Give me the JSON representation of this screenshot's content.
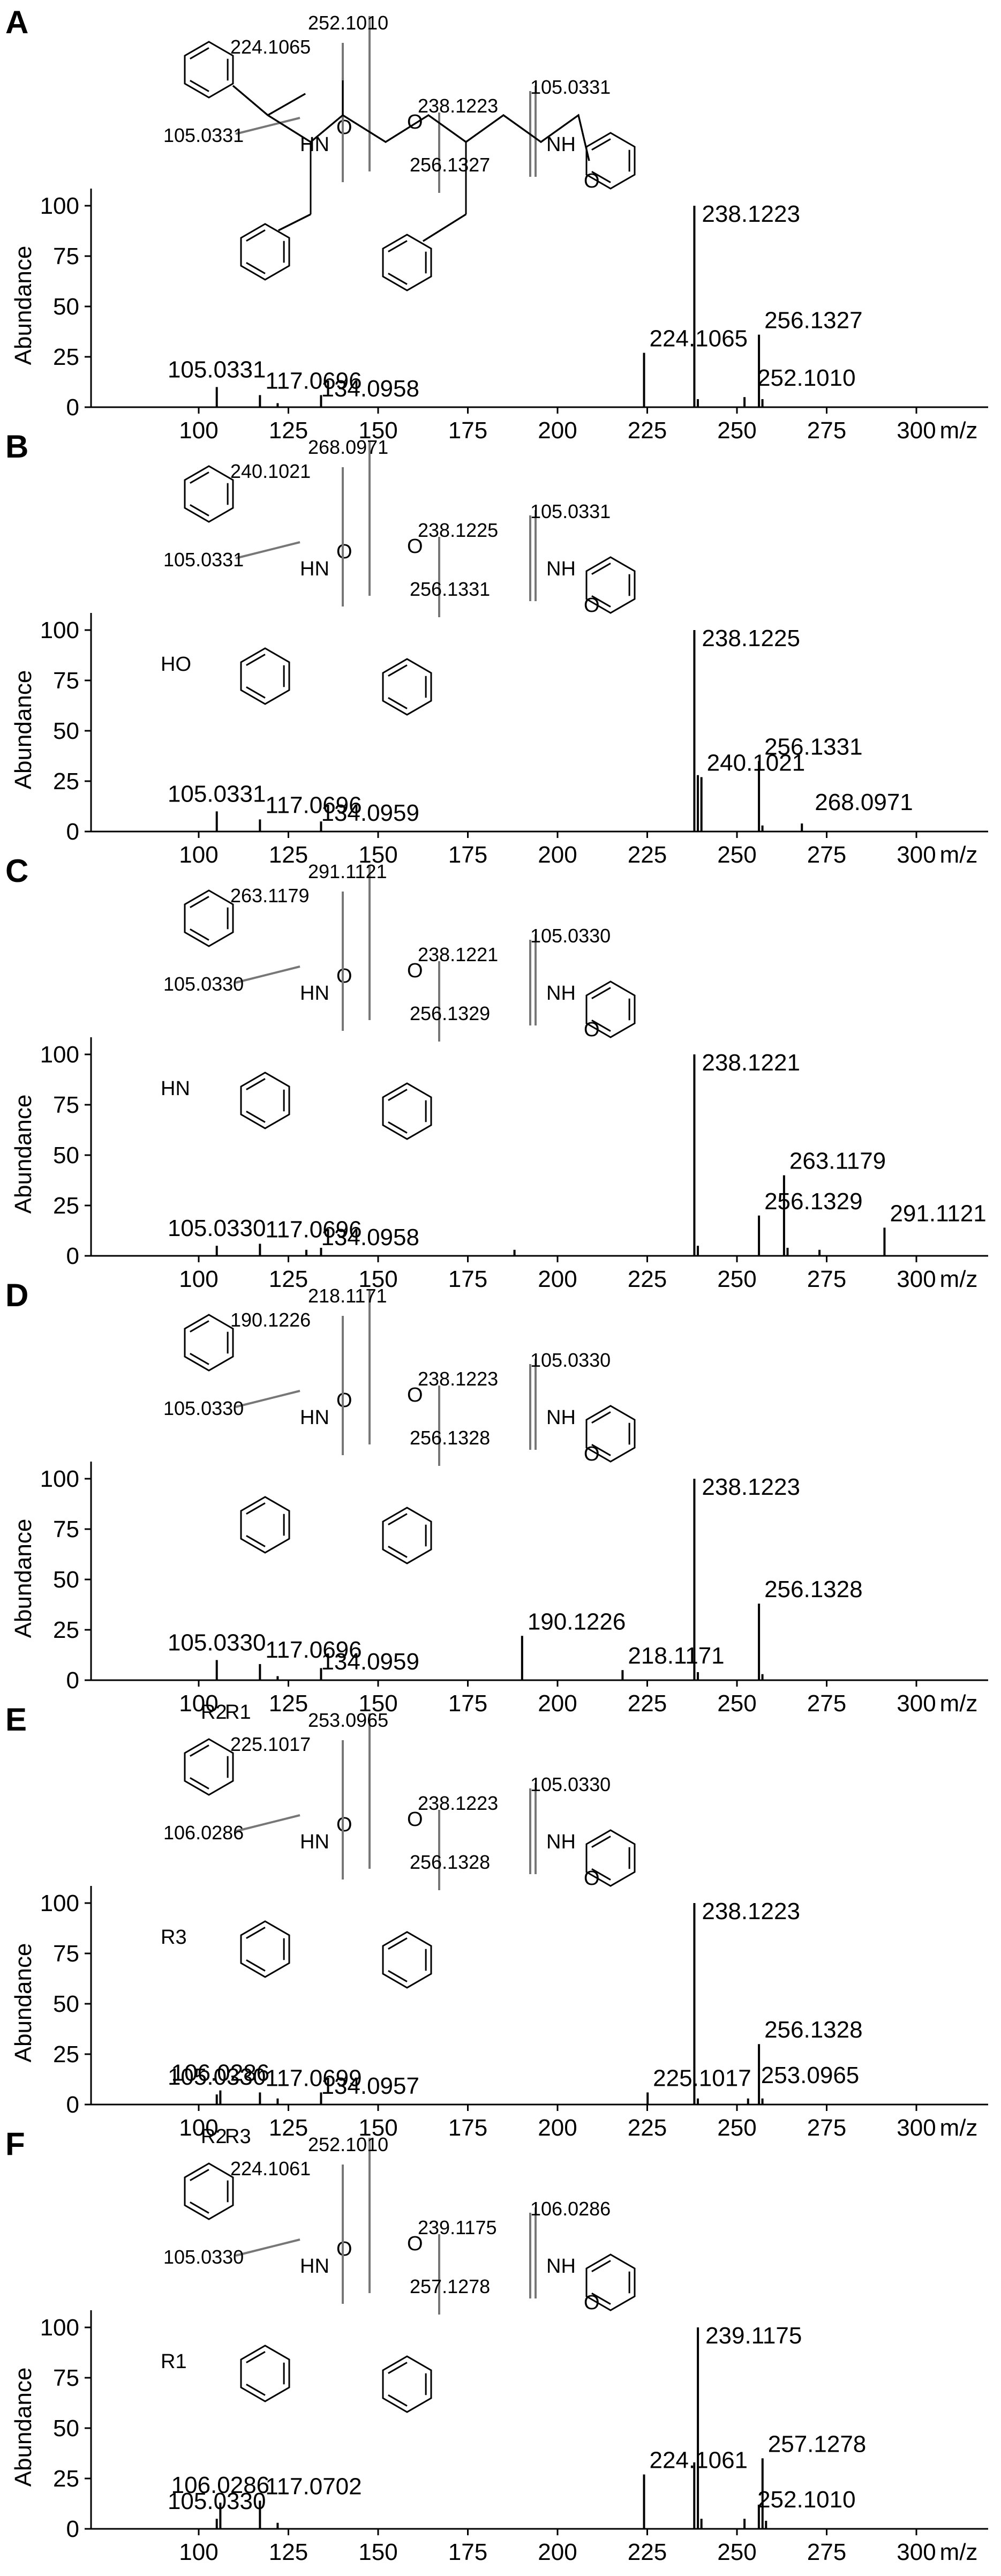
{
  "chart_data": [
    {
      "panel_label": "A",
      "type": "bar",
      "ylabel": "Abundance",
      "xunit": "m/z",
      "xlim": [
        70,
        320
      ],
      "ylim": [
        0,
        110
      ],
      "xticks": [
        100,
        125,
        150,
        175,
        200,
        225,
        250,
        275,
        300
      ],
      "yticks": [
        0,
        25,
        50,
        75,
        100
      ],
      "peaks": [
        {
          "x": 105.0331,
          "y": 10,
          "label": "105.0331"
        },
        {
          "x": 117.0696,
          "y": 6,
          "label": "117.0696"
        },
        {
          "x": 122.0,
          "y": 2,
          "label": ""
        },
        {
          "x": 134.0958,
          "y": 6,
          "label": "134.0958"
        },
        {
          "x": 224.1065,
          "y": 27,
          "label": "224.1065"
        },
        {
          "x": 238.1223,
          "y": 100,
          "label": "238.1223"
        },
        {
          "x": 239.1,
          "y": 4,
          "label": ""
        },
        {
          "x": 252.101,
          "y": 5,
          "label": "252.1010"
        },
        {
          "x": 256.1327,
          "y": 36,
          "label": "256.1327"
        },
        {
          "x": 257.1,
          "y": 4,
          "label": ""
        }
      ],
      "fragments": [
        "252.1010",
        "224.1065",
        "105.0331",
        "238.1223",
        "105.0331",
        "256.1327"
      ]
    },
    {
      "panel_label": "B",
      "type": "bar",
      "ylabel": "Abundance",
      "xunit": "m/z",
      "xlim": [
        70,
        320
      ],
      "ylim": [
        0,
        110
      ],
      "xticks": [
        100,
        125,
        150,
        175,
        200,
        225,
        250,
        275,
        300
      ],
      "yticks": [
        0,
        25,
        50,
        75,
        100
      ],
      "peaks": [
        {
          "x": 105.0331,
          "y": 10,
          "label": "105.0331"
        },
        {
          "x": 117.0696,
          "y": 6,
          "label": "117.0696"
        },
        {
          "x": 134.0959,
          "y": 5,
          "label": "134.0959"
        },
        {
          "x": 238.1225,
          "y": 100,
          "label": "238.1225"
        },
        {
          "x": 239.1,
          "y": 28,
          "label": ""
        },
        {
          "x": 240.1021,
          "y": 27,
          "label": "240.1021"
        },
        {
          "x": 256.1331,
          "y": 35,
          "label": "256.1331"
        },
        {
          "x": 257.1,
          "y": 3,
          "label": ""
        },
        {
          "x": 268.0971,
          "y": 4,
          "label": "268.0971"
        }
      ],
      "fragments": [
        "268.0971",
        "240.1021",
        "105.0331",
        "238.1225",
        "105.0331",
        "256.1331"
      ],
      "atoms": [
        "HO"
      ]
    },
    {
      "panel_label": "C",
      "type": "bar",
      "ylabel": "Abundance",
      "xunit": "m/z",
      "xlim": [
        70,
        320
      ],
      "ylim": [
        0,
        110
      ],
      "xticks": [
        100,
        125,
        150,
        175,
        200,
        225,
        250,
        275,
        300
      ],
      "yticks": [
        0,
        25,
        50,
        75,
        100
      ],
      "peaks": [
        {
          "x": 105.033,
          "y": 5,
          "label": "105.0330"
        },
        {
          "x": 117.0696,
          "y": 6,
          "label": "117.0696"
        },
        {
          "x": 130.0,
          "y": 3,
          "label": ""
        },
        {
          "x": 134.0958,
          "y": 4,
          "label": "134.0958"
        },
        {
          "x": 188.0,
          "y": 3,
          "label": ""
        },
        {
          "x": 238.1221,
          "y": 100,
          "label": "238.1221"
        },
        {
          "x": 239.1,
          "y": 5,
          "label": ""
        },
        {
          "x": 256.1329,
          "y": 20,
          "label": "256.1329"
        },
        {
          "x": 263.1179,
          "y": 40,
          "label": "263.1179"
        },
        {
          "x": 264.1,
          "y": 4,
          "label": ""
        },
        {
          "x": 273.0,
          "y": 3,
          "label": ""
        },
        {
          "x": 291.1121,
          "y": 14,
          "label": "291.1121"
        }
      ],
      "fragments": [
        "291.1121",
        "263.1179",
        "105.0330",
        "238.1221",
        "105.0330",
        "256.1329"
      ],
      "atoms": [
        "HN"
      ]
    },
    {
      "panel_label": "D",
      "type": "bar",
      "ylabel": "Abundance",
      "xunit": "m/z",
      "xlim": [
        70,
        320
      ],
      "ylim": [
        0,
        110
      ],
      "xticks": [
        100,
        125,
        150,
        175,
        200,
        225,
        250,
        275,
        300
      ],
      "yticks": [
        0,
        25,
        50,
        75,
        100
      ],
      "peaks": [
        {
          "x": 105.033,
          "y": 10,
          "label": "105.0330"
        },
        {
          "x": 117.0696,
          "y": 8,
          "label": "117.0696"
        },
        {
          "x": 122.0,
          "y": 2,
          "label": ""
        },
        {
          "x": 134.0959,
          "y": 6,
          "label": "134.0959"
        },
        {
          "x": 190.1226,
          "y": 22,
          "label": "190.1226"
        },
        {
          "x": 218.1171,
          "y": 5,
          "label": "218.1171"
        },
        {
          "x": 238.1223,
          "y": 100,
          "label": "238.1223"
        },
        {
          "x": 239.1,
          "y": 4,
          "label": ""
        },
        {
          "x": 256.1328,
          "y": 38,
          "label": "256.1328"
        },
        {
          "x": 257.1,
          "y": 3,
          "label": ""
        }
      ],
      "fragments": [
        "218.1171",
        "190.1226",
        "105.0330",
        "238.1223",
        "105.0330",
        "256.1328"
      ]
    },
    {
      "panel_label": "E",
      "type": "bar",
      "ylabel": "Abundance",
      "xunit": "m/z",
      "xlim": [
        70,
        320
      ],
      "ylim": [
        0,
        110
      ],
      "xticks": [
        100,
        125,
        150,
        175,
        200,
        225,
        250,
        275,
        300
      ],
      "yticks": [
        0,
        25,
        50,
        75,
        100
      ],
      "peaks": [
        {
          "x": 105.033,
          "y": 5,
          "label": "105.0330"
        },
        {
          "x": 106.0286,
          "y": 7,
          "label": "106.0286"
        },
        {
          "x": 117.0699,
          "y": 6,
          "label": "117.0699"
        },
        {
          "x": 122.0,
          "y": 3,
          "label": ""
        },
        {
          "x": 134.0957,
          "y": 6,
          "label": "134.0957"
        },
        {
          "x": 225.1017,
          "y": 6,
          "label": "225.1017"
        },
        {
          "x": 238.1223,
          "y": 100,
          "label": "238.1223"
        },
        {
          "x": 239.1,
          "y": 3,
          "label": ""
        },
        {
          "x": 253.0965,
          "y": 3,
          "label": "253.0965"
        },
        {
          "x": 256.1328,
          "y": 30,
          "label": "256.1328"
        },
        {
          "x": 257.1,
          "y": 3,
          "label": ""
        }
      ],
      "fragments": [
        "253.0965",
        "225.1017",
        "106.0286",
        "238.1223",
        "105.0330",
        "256.1328"
      ],
      "atoms": [
        "R3",
        "R2",
        "R1"
      ]
    },
    {
      "panel_label": "F",
      "type": "bar",
      "ylabel": "Abundance",
      "xunit": "m/z",
      "xlim": [
        70,
        320
      ],
      "ylim": [
        0,
        110
      ],
      "xticks": [
        100,
        125,
        150,
        175,
        200,
        225,
        250,
        275,
        300
      ],
      "yticks": [
        0,
        25,
        50,
        75,
        100
      ],
      "peaks": [
        {
          "x": 105.033,
          "y": 5,
          "label": "105.0330"
        },
        {
          "x": 106.0286,
          "y": 13,
          "label": "106.0286"
        },
        {
          "x": 117.0702,
          "y": 14,
          "label": "117.0702"
        },
        {
          "x": 122.0,
          "y": 3,
          "label": ""
        },
        {
          "x": 224.1061,
          "y": 27,
          "label": "224.1061"
        },
        {
          "x": 238.1,
          "y": 33,
          "label": ""
        },
        {
          "x": 239.1175,
          "y": 100,
          "label": "239.1175"
        },
        {
          "x": 240.1,
          "y": 5,
          "label": ""
        },
        {
          "x": 252.101,
          "y": 5,
          "label": "252.1010"
        },
        {
          "x": 256.1,
          "y": 12,
          "label": ""
        },
        {
          "x": 257.1278,
          "y": 35,
          "label": "257.1278"
        },
        {
          "x": 258.1,
          "y": 4,
          "label": ""
        }
      ],
      "fragments": [
        "252.1010",
        "224.1061",
        "105.0330",
        "239.1175",
        "106.0286",
        "257.1278"
      ],
      "atoms": [
        "R1",
        "R2",
        "R3"
      ]
    }
  ]
}
